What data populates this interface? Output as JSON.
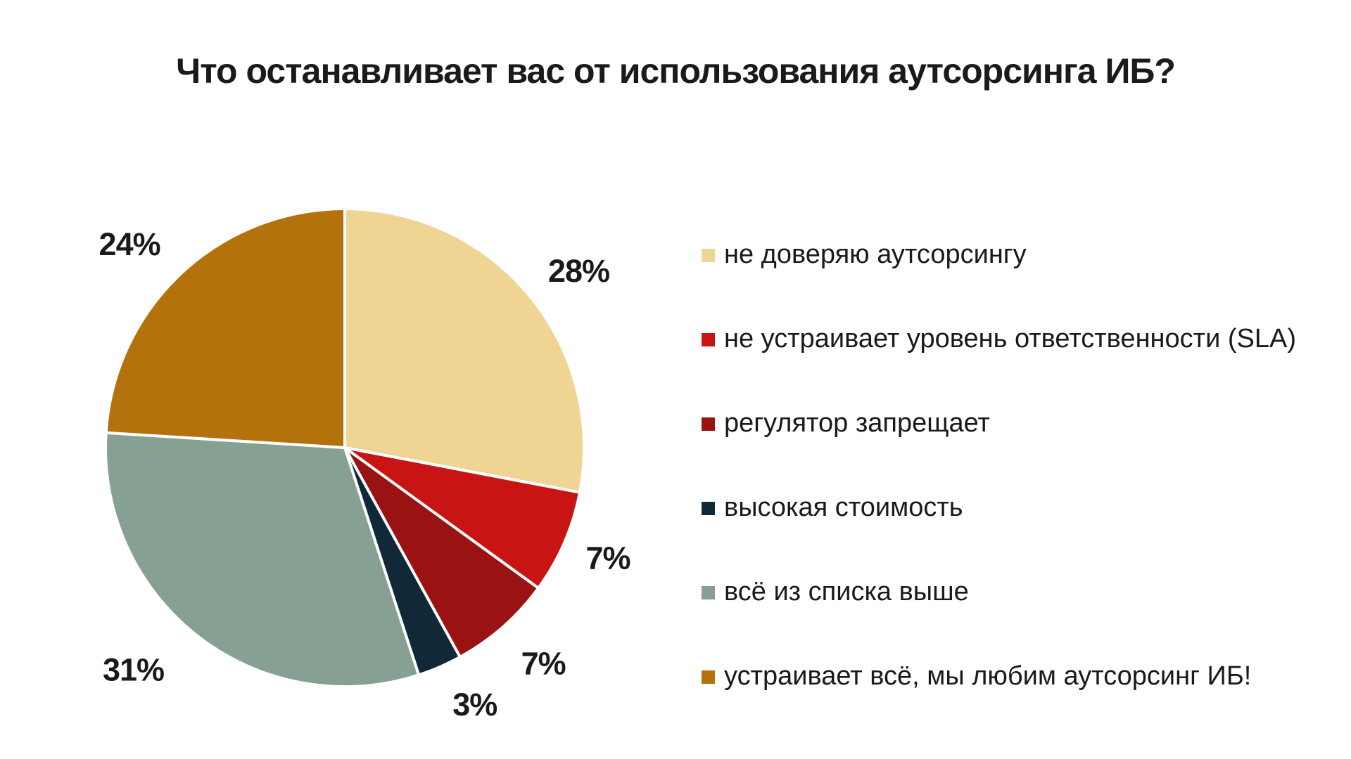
{
  "title": "Что останавливает вас от использования аутсорсинга ИБ?",
  "chart_data": {
    "type": "pie",
    "title": "Что останавливает вас от использования аутсорсинга ИБ?",
    "start_angle_deg": 0,
    "direction": "clockwise",
    "legend_position": "right",
    "grid": false,
    "slices": [
      {
        "label": "не доверяю аутсорсингу",
        "value": 28,
        "display": "28%",
        "color": "#F0D494"
      },
      {
        "label": "не устраивает уровень ответственности (SLA)",
        "value": 7,
        "display": "7%",
        "color": "#C91414"
      },
      {
        "label": "регулятор запрещает",
        "value": 7,
        "display": "7%",
        "color": "#9B1212"
      },
      {
        "label": "высокая стоимость",
        "value": 3,
        "display": "3%",
        "color": "#112838"
      },
      {
        "label": "всё из списка выше",
        "value": 31,
        "display": "31%",
        "color": "#87A094"
      },
      {
        "label": "устраивает всё, мы любим аутсорсинг ИБ!",
        "value": 24,
        "display": "24%",
        "color": "#B4720D"
      }
    ]
  }
}
